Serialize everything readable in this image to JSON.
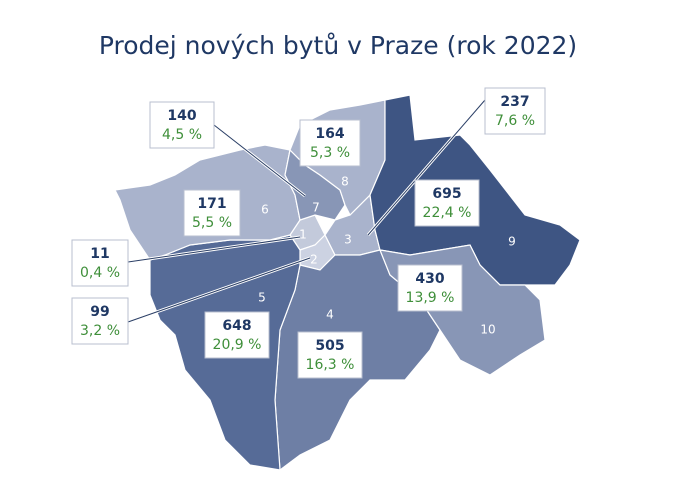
{
  "title": "Prodej nových bytů v Praze (rok 2022)",
  "districts": [
    {
      "number": 1,
      "count": 11,
      "share": "0,4 %",
      "color": "#c3cadb"
    },
    {
      "number": 2,
      "count": 99,
      "share": "3,2 %",
      "color": "#ccd2e2"
    },
    {
      "number": 3,
      "count": 237,
      "share": "7,6 %",
      "color": "#a9b3cc"
    },
    {
      "number": 4,
      "count": 505,
      "share": "16,3 %",
      "color": "#6e7fa5"
    },
    {
      "number": 5,
      "count": 648,
      "share": "20,9 %",
      "color": "#566b97"
    },
    {
      "number": 6,
      "count": 171,
      "share": "5,5 %",
      "color": "#a9b3cc"
    },
    {
      "number": 7,
      "count": 140,
      "share": "4,5 %",
      "color": "#8896b6"
    },
    {
      "number": 8,
      "count": 164,
      "share": "5,3 %",
      "color": "#a9b3cc"
    },
    {
      "number": 9,
      "count": 695,
      "share": "22,4 %",
      "color": "#3e5583"
    },
    {
      "number": 10,
      "count": 430,
      "share": "13,9 %",
      "color": "#8896b6"
    }
  ]
}
